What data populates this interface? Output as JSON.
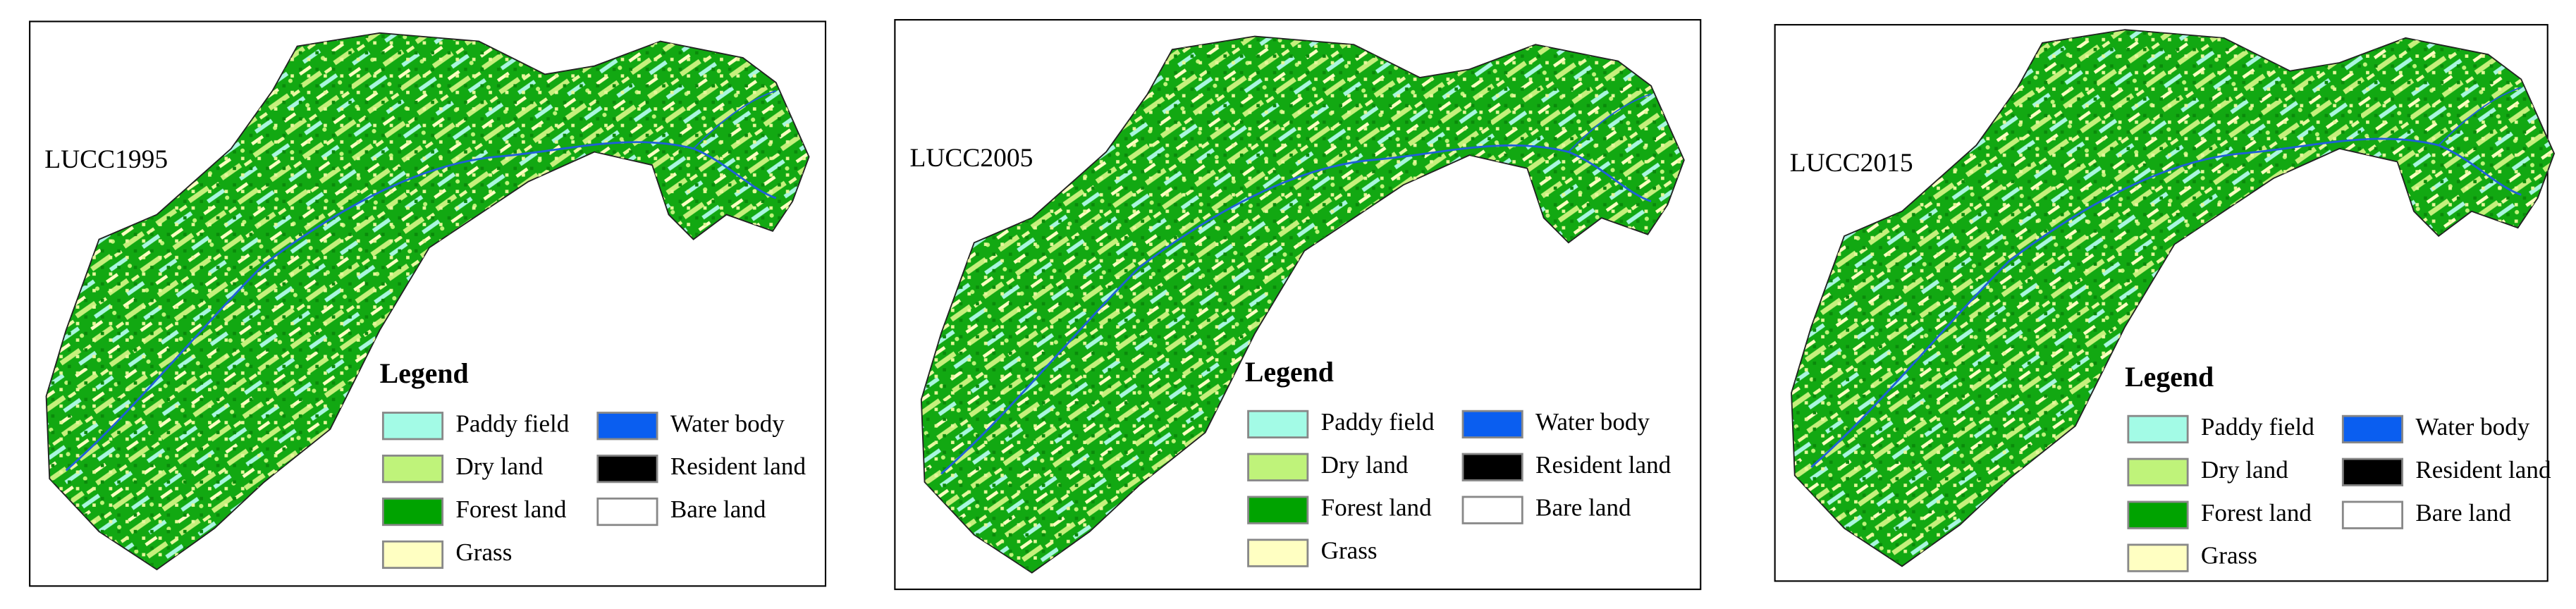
{
  "panels": [
    {
      "label": "LUCC1995"
    },
    {
      "label": "LUCC2005"
    },
    {
      "label": "LUCC2015"
    }
  ],
  "legend": {
    "title": "Legend",
    "items": [
      {
        "name": "Paddy field",
        "color": "#a3fbe6"
      },
      {
        "name": "Dry land",
        "color": "#bff37a"
      },
      {
        "name": "Forest land",
        "color": "#00a300"
      },
      {
        "name": "Grass",
        "color": "#ffffc2"
      },
      {
        "name": "Water body",
        "color": "#0a5ef0"
      },
      {
        "name": "Resident land",
        "color": "#000000"
      },
      {
        "name": "Bare land",
        "color": "#ffffff"
      }
    ]
  }
}
